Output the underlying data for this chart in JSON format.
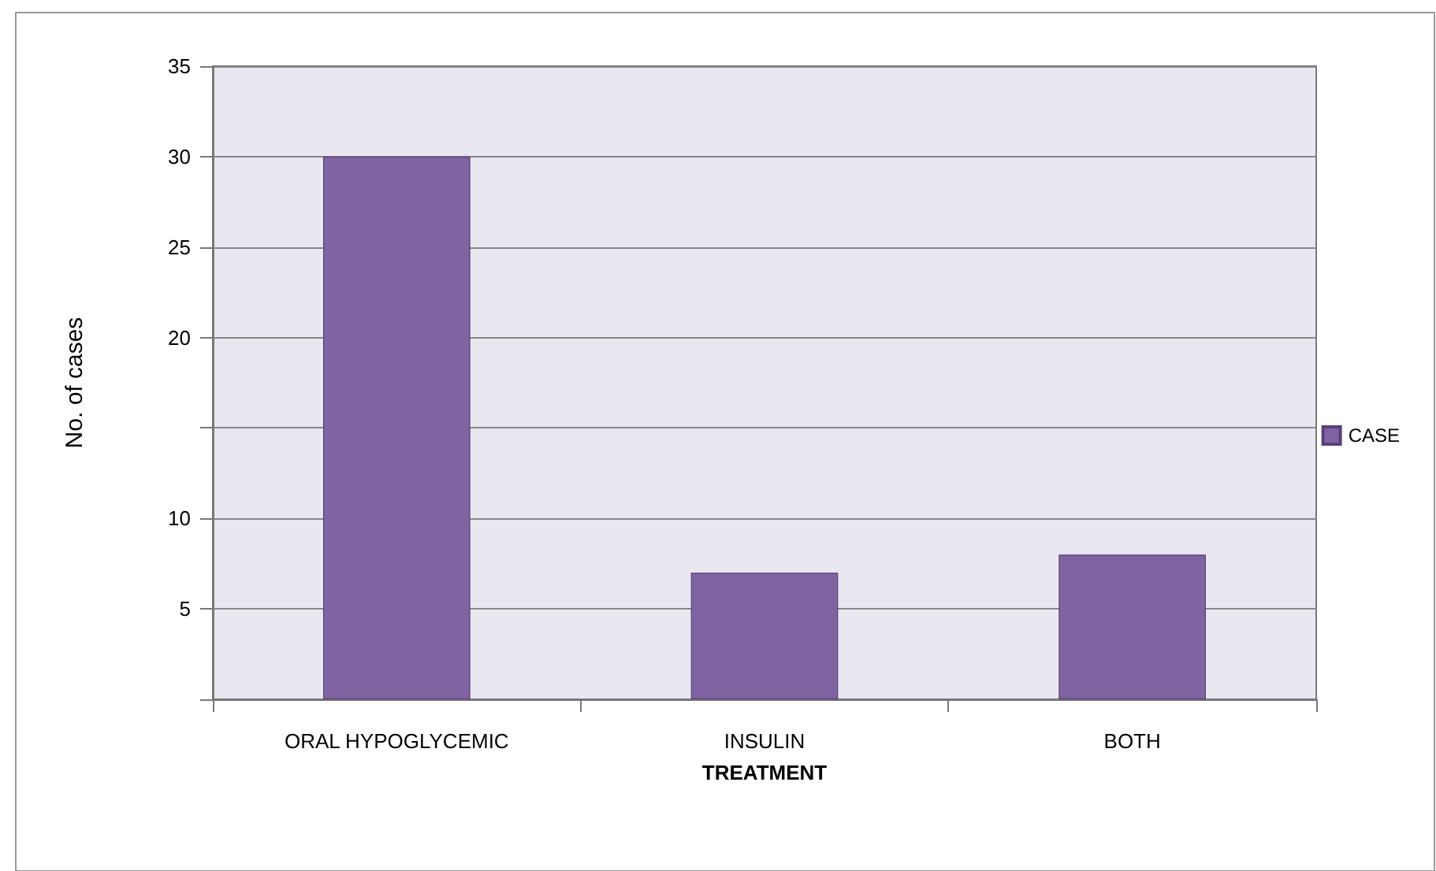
{
  "chart_data": {
    "type": "bar",
    "xlabel": "TREATMENT",
    "ylabel": "No. of cases",
    "categories": [
      "ORAL HYPOGLYCEMIC",
      "INSULIN",
      "BOTH"
    ],
    "series": [
      {
        "name": "CASE",
        "color": "#8064a2",
        "values": [
          30,
          7,
          8
        ]
      }
    ],
    "ylim": [
      0,
      35
    ],
    "yticks": [
      {
        "value": 0,
        "label": null
      },
      5,
      10,
      {
        "value": 15,
        "label": null
      },
      20,
      25,
      30,
      35
    ],
    "grid": "y",
    "legend": "right"
  }
}
